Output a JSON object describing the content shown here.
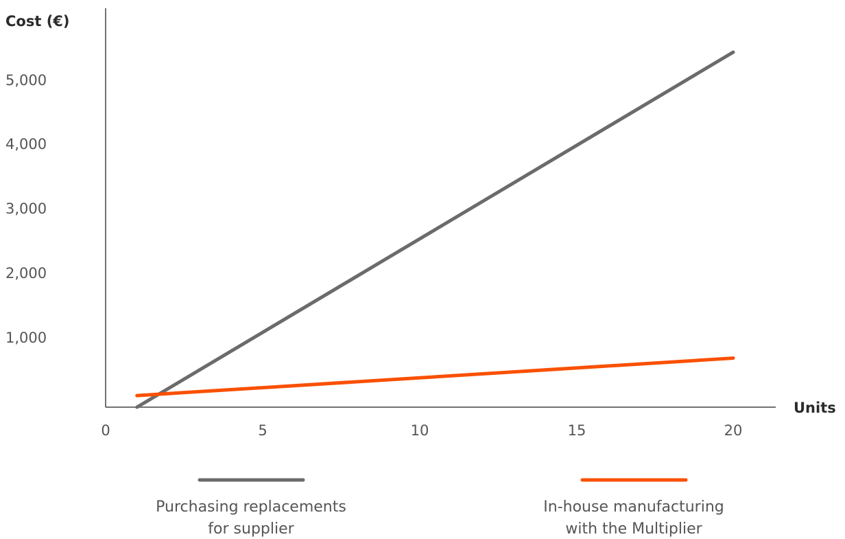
{
  "chart_data": {
    "type": "line",
    "ylabel": "Cost (€)",
    "xlabel": "Units",
    "xlim": [
      0,
      21.5
    ],
    "ylim": [
      0,
      6200
    ],
    "x_ticks": [
      "0",
      "5",
      "10",
      "15",
      "20"
    ],
    "y_ticks": [
      "1,000",
      "2,000",
      "3,000",
      "4,000",
      "5,000"
    ],
    "grid": false,
    "legend_position": "bottom",
    "series": [
      {
        "name": "Purchasing replacements for supplier",
        "name_lines": [
          "Purchasing replacements",
          "for supplier"
        ],
        "color": "#6b6b6b",
        "points": [
          [
            1,
            0
          ],
          [
            20,
            5500
          ]
        ]
      },
      {
        "name": "In-house manufacturing with the Multiplier",
        "name_lines": [
          "In-house manufacturing",
          "with the Multiplier"
        ],
        "color": "#fa5000",
        "points": [
          [
            1,
            180
          ],
          [
            20,
            760
          ]
        ]
      }
    ]
  }
}
